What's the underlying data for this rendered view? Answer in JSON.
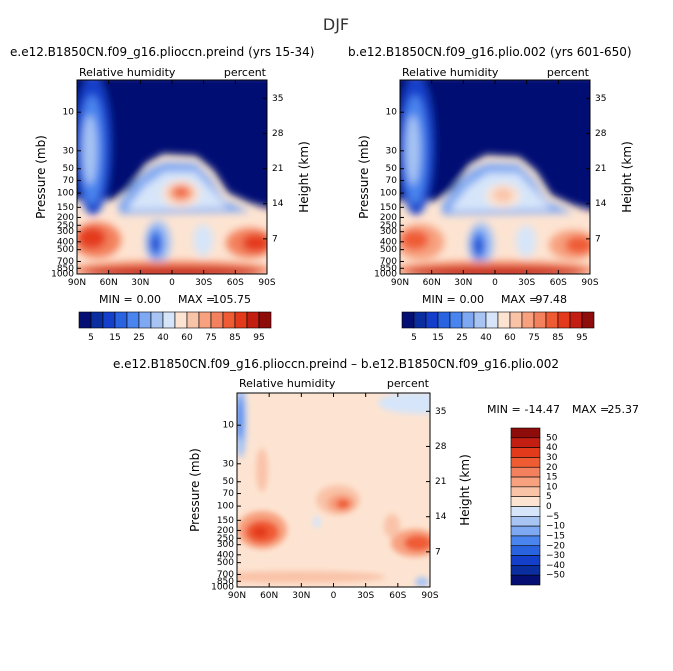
{
  "figure_title": "DJF",
  "chart_data": [
    {
      "type": "heatmap",
      "title": "e.e12.B1850CN.f09_g16.plioccn.preind (yrs 15-34)",
      "subtitle_left": "Relative humidity",
      "subtitle_right": "percent",
      "xlabel": "",
      "ylabel": "Pressure (mb)",
      "ylabel_right": "Height (km)",
      "x_ticks": [
        "90N",
        "60N",
        "30N",
        "0",
        "30S",
        "60S",
        "90S"
      ],
      "y_ticks": [
        "10",
        "30",
        "50",
        "70",
        "100",
        "150",
        "200",
        "250",
        "300",
        "400",
        "500",
        "700",
        "850",
        "1000"
      ],
      "height_ticks": [
        "35",
        "28",
        "21",
        "14",
        "7"
      ],
      "stats": {
        "min_label": "MIN =",
        "min": "0.00",
        "max_label": "MAX =",
        "max": "105.75"
      },
      "colorbar": {
        "orientation": "horizontal",
        "labels": [
          "5",
          "15",
          "25",
          "40",
          "60",
          "75",
          "85",
          "95"
        ],
        "colors": [
          "#050f73",
          "#0a2e9e",
          "#143fcb",
          "#2a63e0",
          "#4a84ee",
          "#7fa8f2",
          "#a8c4f3",
          "#d6e5f9",
          "#fde4d2",
          "#f9c3a8",
          "#f7a17f",
          "#f3815d",
          "#ef5c34",
          "#e43a1c",
          "#c21f12",
          "#8e0c0a"
        ]
      }
    },
    {
      "type": "heatmap",
      "title": "b.e12.B1850CN.f09_g16.plio.002 (yrs 601-650)",
      "subtitle_left": "Relative humidity",
      "subtitle_right": "percent",
      "xlabel": "",
      "ylabel": "Pressure (mb)",
      "ylabel_right": "Height (km)",
      "x_ticks": [
        "90N",
        "60N",
        "30N",
        "0",
        "30S",
        "60S",
        "90S"
      ],
      "y_ticks": [
        "10",
        "30",
        "50",
        "70",
        "100",
        "150",
        "200",
        "250",
        "300",
        "400",
        "500",
        "700",
        "850",
        "1000"
      ],
      "height_ticks": [
        "35",
        "28",
        "21",
        "14",
        "7"
      ],
      "stats": {
        "min_label": "MIN =",
        "min": "0.00",
        "max_label": "MAX =",
        "max": "97.48"
      },
      "colorbar": {
        "orientation": "horizontal",
        "labels": [
          "5",
          "15",
          "25",
          "40",
          "60",
          "75",
          "85",
          "95"
        ],
        "colors": [
          "#050f73",
          "#0a2e9e",
          "#143fcb",
          "#2a63e0",
          "#4a84ee",
          "#7fa8f2",
          "#a8c4f3",
          "#d6e5f9",
          "#fde4d2",
          "#f9c3a8",
          "#f7a17f",
          "#f3815d",
          "#ef5c34",
          "#e43a1c",
          "#c21f12",
          "#8e0c0a"
        ]
      }
    },
    {
      "type": "heatmap",
      "title": "e.e12.B1850CN.f09_g16.plioccn.preind – b.e12.B1850CN.f09_g16.plio.002",
      "subtitle_left": "Relative humidity",
      "subtitle_right": "percent",
      "xlabel": "",
      "ylabel": "Pressure (mb)",
      "ylabel_right": "Height (km)",
      "x_ticks": [
        "90N",
        "60N",
        "30N",
        "0",
        "30S",
        "60S",
        "90S"
      ],
      "y_ticks": [
        "10",
        "30",
        "50",
        "70",
        "100",
        "150",
        "200",
        "250",
        "300",
        "400",
        "500",
        "700",
        "850",
        "1000"
      ],
      "height_ticks": [
        "35",
        "28",
        "21",
        "14",
        "7"
      ],
      "stats": {
        "min_label": "MIN =",
        "min": "-14.47",
        "max_label": "MAX =",
        "max": "25.37"
      },
      "colorbar": {
        "orientation": "vertical",
        "labels": [
          "50",
          "40",
          "30",
          "20",
          "15",
          "10",
          "5",
          "0",
          "−5",
          "−10",
          "−15",
          "−20",
          "−30",
          "−40",
          "−50"
        ],
        "colors": [
          "#8e0c0a",
          "#c21f12",
          "#e43a1c",
          "#ef5c34",
          "#f3815d",
          "#f7a17f",
          "#f9c3a8",
          "#fde4d2",
          "#d6e5f9",
          "#a8c4f3",
          "#7fa8f2",
          "#4a84ee",
          "#2a63e0",
          "#143fcb",
          "#0a2e9e",
          "#050f73"
        ]
      }
    }
  ]
}
